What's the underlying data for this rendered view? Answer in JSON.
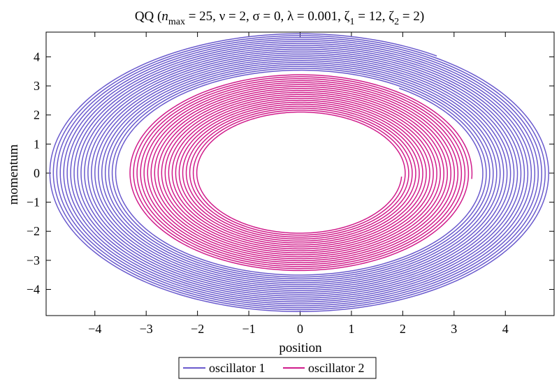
{
  "chart_data": {
    "type": "line",
    "title": {
      "prefix": "QQ  (",
      "n_var": "n",
      "n_sub": "max",
      "n_val": " = 25, ",
      "nu": "ν = 2, ",
      "sigma": "σ = 0, ",
      "lambda": "λ = 0.001, ",
      "zeta1_sym": "ζ",
      "zeta1_sub": "1",
      "zeta1_val": " = 12, ",
      "zeta2_sym": "ζ",
      "zeta2_sub": "2",
      "zeta2_val": " = 2)"
    },
    "xlabel": "position",
    "ylabel": "momentum",
    "xlim": [
      -4.95,
      4.95
    ],
    "ylim": [
      -4.9,
      4.85
    ],
    "xticks": [
      -4,
      -3,
      -2,
      -1,
      0,
      1,
      2,
      3,
      4
    ],
    "yticks": [
      -4,
      -3,
      -2,
      -1,
      0,
      1,
      2,
      3,
      4
    ],
    "xtick_labels": [
      "−4",
      "−3",
      "−2",
      "−1",
      "0",
      "1",
      "2",
      "3",
      "4"
    ],
    "ytick_labels": [
      "−4",
      "−3",
      "−2",
      "−1",
      "0",
      "1",
      "2",
      "3",
      "4"
    ],
    "legend_position": "bottom",
    "series": [
      {
        "name": "oscillator 1",
        "color": "#6a5acd",
        "shape": "spiral",
        "start": [
          1.95,
          2.95
        ],
        "r_x_outer": 4.9,
        "r_y_outer": 4.8,
        "r_x_inner": 3.55,
        "r_y_inner": 3.48,
        "turns": 20
      },
      {
        "name": "oscillator 2",
        "color": "#d01c8b",
        "shape": "spiral",
        "start": [
          3.35,
          -0.2
        ],
        "r_x_outer": 3.35,
        "r_y_outer": 3.4,
        "r_x_inner": 1.98,
        "r_y_inner": 2.05,
        "turns": 20
      }
    ]
  }
}
